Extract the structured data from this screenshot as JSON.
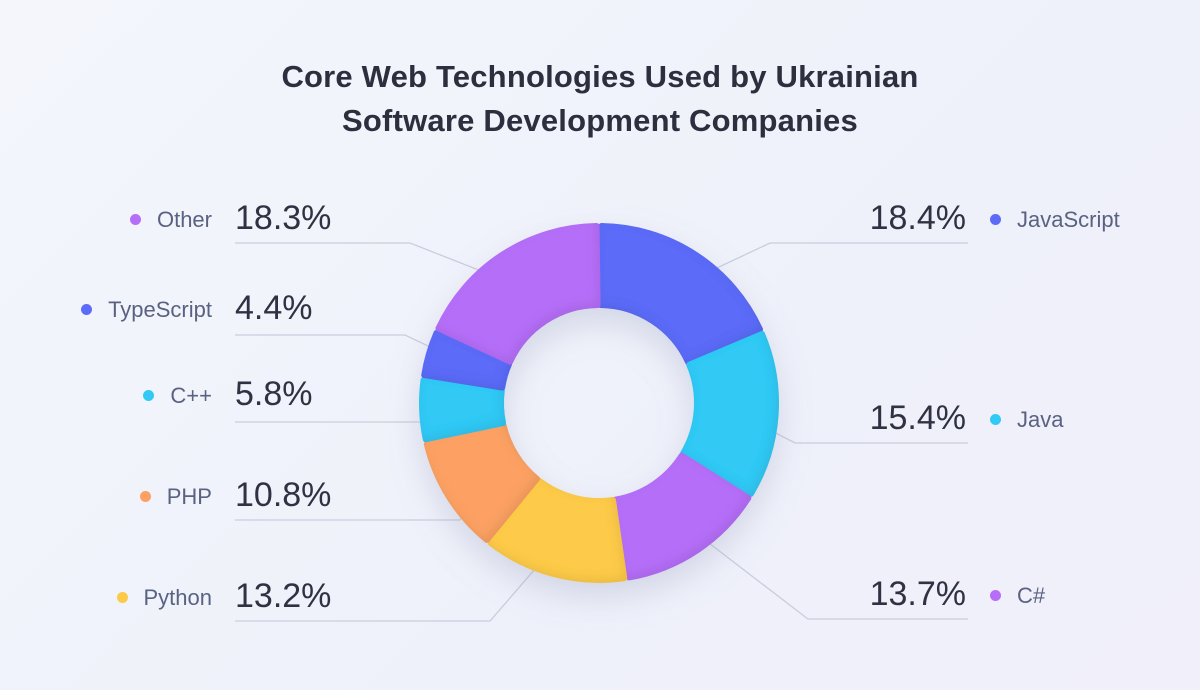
{
  "title_line1": "Core Web Technologies Used by Ukrainian",
  "title_line2": "Software Development Companies",
  "chart_data": {
    "type": "pie",
    "title": "Core Web Technologies Used by Ukrainian Software Development Companies",
    "donut": true,
    "legend": "callout-labels",
    "slices": [
      {
        "label": "JavaScript",
        "value": 18.4,
        "display": "18.4%",
        "color": "#5c6cf8"
      },
      {
        "label": "Java",
        "value": 15.4,
        "display": "15.4%",
        "color": "#31c9f5"
      },
      {
        "label": "C#",
        "value": 13.7,
        "display": "13.7%",
        "color": "#b56ef8"
      },
      {
        "label": "Python",
        "value": 13.2,
        "display": "13.2%",
        "color": "#fdca48"
      },
      {
        "label": "PHP",
        "value": 10.8,
        "display": "10.8%",
        "color": "#fca163"
      },
      {
        "label": "C++",
        "value": 5.8,
        "display": "5.8%",
        "color": "#31c9f5"
      },
      {
        "label": "TypeScript",
        "value": 4.4,
        "display": "4.4%",
        "color": "#5c6cf8"
      },
      {
        "label": "Other",
        "value": 18.3,
        "display": "18.3%",
        "color": "#b56ef8"
      }
    ]
  }
}
